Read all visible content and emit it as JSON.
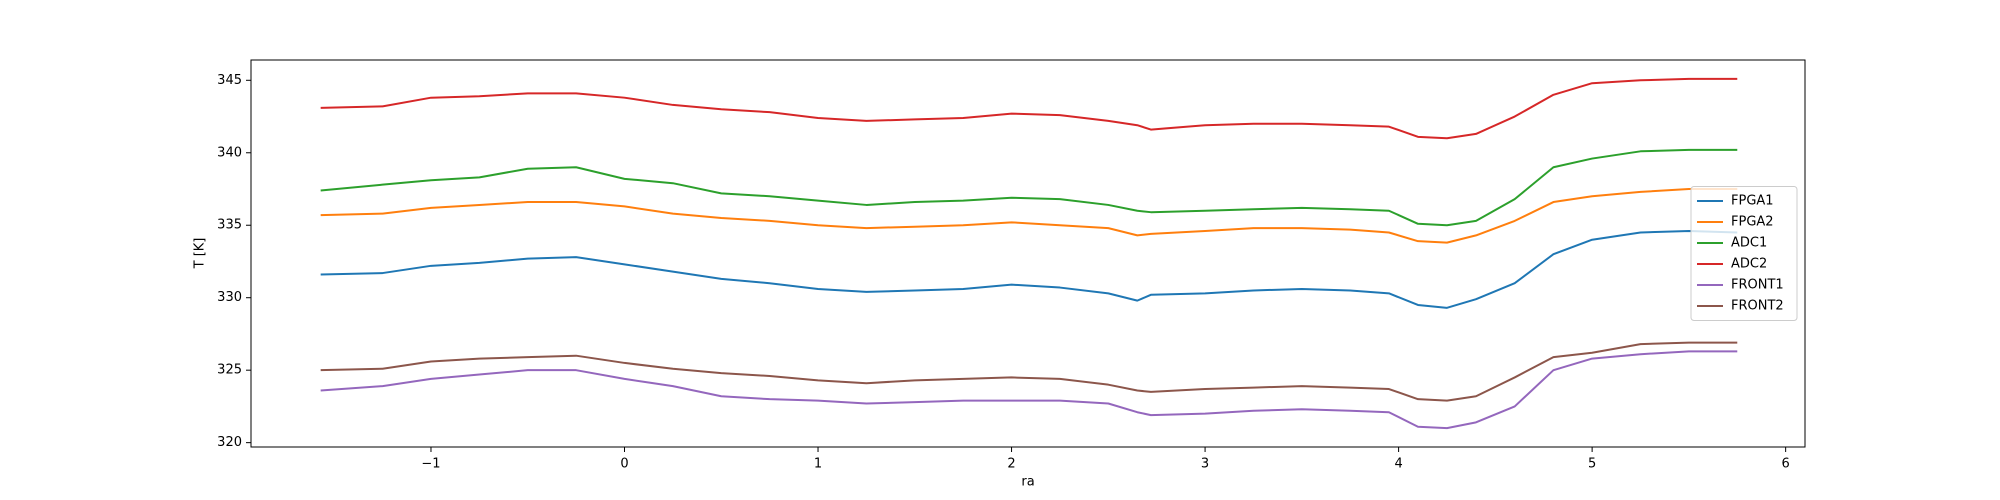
{
  "chart_data": {
    "type": "line",
    "xlabel": "ra",
    "ylabel": "T [K]",
    "x": [
      -1.57,
      -1.25,
      -1.0,
      -0.75,
      -0.5,
      -0.25,
      0,
      0.25,
      0.5,
      0.75,
      1.0,
      1.25,
      1.5,
      1.75,
      2.0,
      2.25,
      2.5,
      2.65,
      2.72,
      3.0,
      3.25,
      3.5,
      3.75,
      3.95,
      4.1,
      4.25,
      4.4,
      4.6,
      4.8,
      5.0,
      5.25,
      5.5,
      5.75
    ],
    "series": [
      {
        "name": "FPGA1",
        "color": "#1f77b4",
        "values": [
          331.6,
          331.7,
          332.2,
          332.4,
          332.7,
          332.8,
          332.3,
          331.8,
          331.3,
          331.0,
          330.6,
          330.4,
          330.5,
          330.6,
          330.9,
          330.7,
          330.3,
          329.8,
          330.2,
          330.3,
          330.5,
          330.6,
          330.5,
          330.3,
          329.5,
          329.3,
          329.9,
          331.0,
          333.0,
          334.0,
          334.5,
          334.6,
          334.5
        ]
      },
      {
        "name": "FPGA2",
        "color": "#ff7f0e",
        "values": [
          335.7,
          335.8,
          336.2,
          336.4,
          336.6,
          336.6,
          336.3,
          335.8,
          335.5,
          335.3,
          335.0,
          334.8,
          334.9,
          335.0,
          335.2,
          335.0,
          334.8,
          334.3,
          334.4,
          334.6,
          334.8,
          334.8,
          334.7,
          334.5,
          333.9,
          333.8,
          334.3,
          335.3,
          336.6,
          337.0,
          337.3,
          337.5,
          337.5
        ]
      },
      {
        "name": "ADC1",
        "color": "#2ca02c",
        "values": [
          337.4,
          337.8,
          338.1,
          338.3,
          338.9,
          339.0,
          338.2,
          337.9,
          337.2,
          337.0,
          336.7,
          336.4,
          336.6,
          336.7,
          336.9,
          336.8,
          336.4,
          336.0,
          335.9,
          336.0,
          336.1,
          336.2,
          336.1,
          336.0,
          335.1,
          335.0,
          335.3,
          336.8,
          339.0,
          339.6,
          340.1,
          340.2,
          340.2
        ]
      },
      {
        "name": "ADC2",
        "color": "#d62728",
        "values": [
          343.1,
          343.2,
          343.8,
          343.9,
          344.1,
          344.1,
          343.8,
          343.3,
          343.0,
          342.8,
          342.4,
          342.2,
          342.3,
          342.4,
          342.7,
          342.6,
          342.2,
          341.9,
          341.6,
          341.9,
          342.0,
          342.0,
          341.9,
          341.8,
          341.1,
          341.0,
          341.3,
          342.5,
          344.0,
          344.8,
          345.0,
          345.1,
          345.1
        ]
      },
      {
        "name": "FRONT1",
        "color": "#9467bd",
        "values": [
          323.6,
          323.9,
          324.4,
          324.7,
          325.0,
          325.0,
          324.4,
          323.9,
          323.2,
          323.0,
          322.9,
          322.7,
          322.8,
          322.9,
          322.9,
          322.9,
          322.7,
          322.1,
          321.9,
          322.0,
          322.2,
          322.3,
          322.2,
          322.1,
          321.1,
          321.0,
          321.4,
          322.5,
          325.0,
          325.8,
          326.1,
          326.3,
          326.3
        ]
      },
      {
        "name": "FRONT2",
        "color": "#8c564b",
        "values": [
          325.0,
          325.1,
          325.6,
          325.8,
          325.9,
          326.0,
          325.5,
          325.1,
          324.8,
          324.6,
          324.3,
          324.1,
          324.3,
          324.4,
          324.5,
          324.4,
          324.0,
          323.6,
          323.5,
          323.7,
          323.8,
          323.9,
          323.8,
          323.7,
          323.0,
          322.9,
          323.2,
          324.5,
          325.9,
          326.2,
          326.8,
          326.9,
          326.9
        ]
      }
    ],
    "xlim": [
      -1.93,
      6.1
    ],
    "xticks": [
      {
        "value": -1,
        "label": "−1"
      },
      0,
      1,
      2,
      3,
      4,
      5,
      6
    ],
    "ylim": [
      319.7,
      346.4
    ],
    "yticks": [
      320,
      325,
      330,
      335,
      340,
      345
    ],
    "grid": false,
    "legend_loc": "center right"
  }
}
